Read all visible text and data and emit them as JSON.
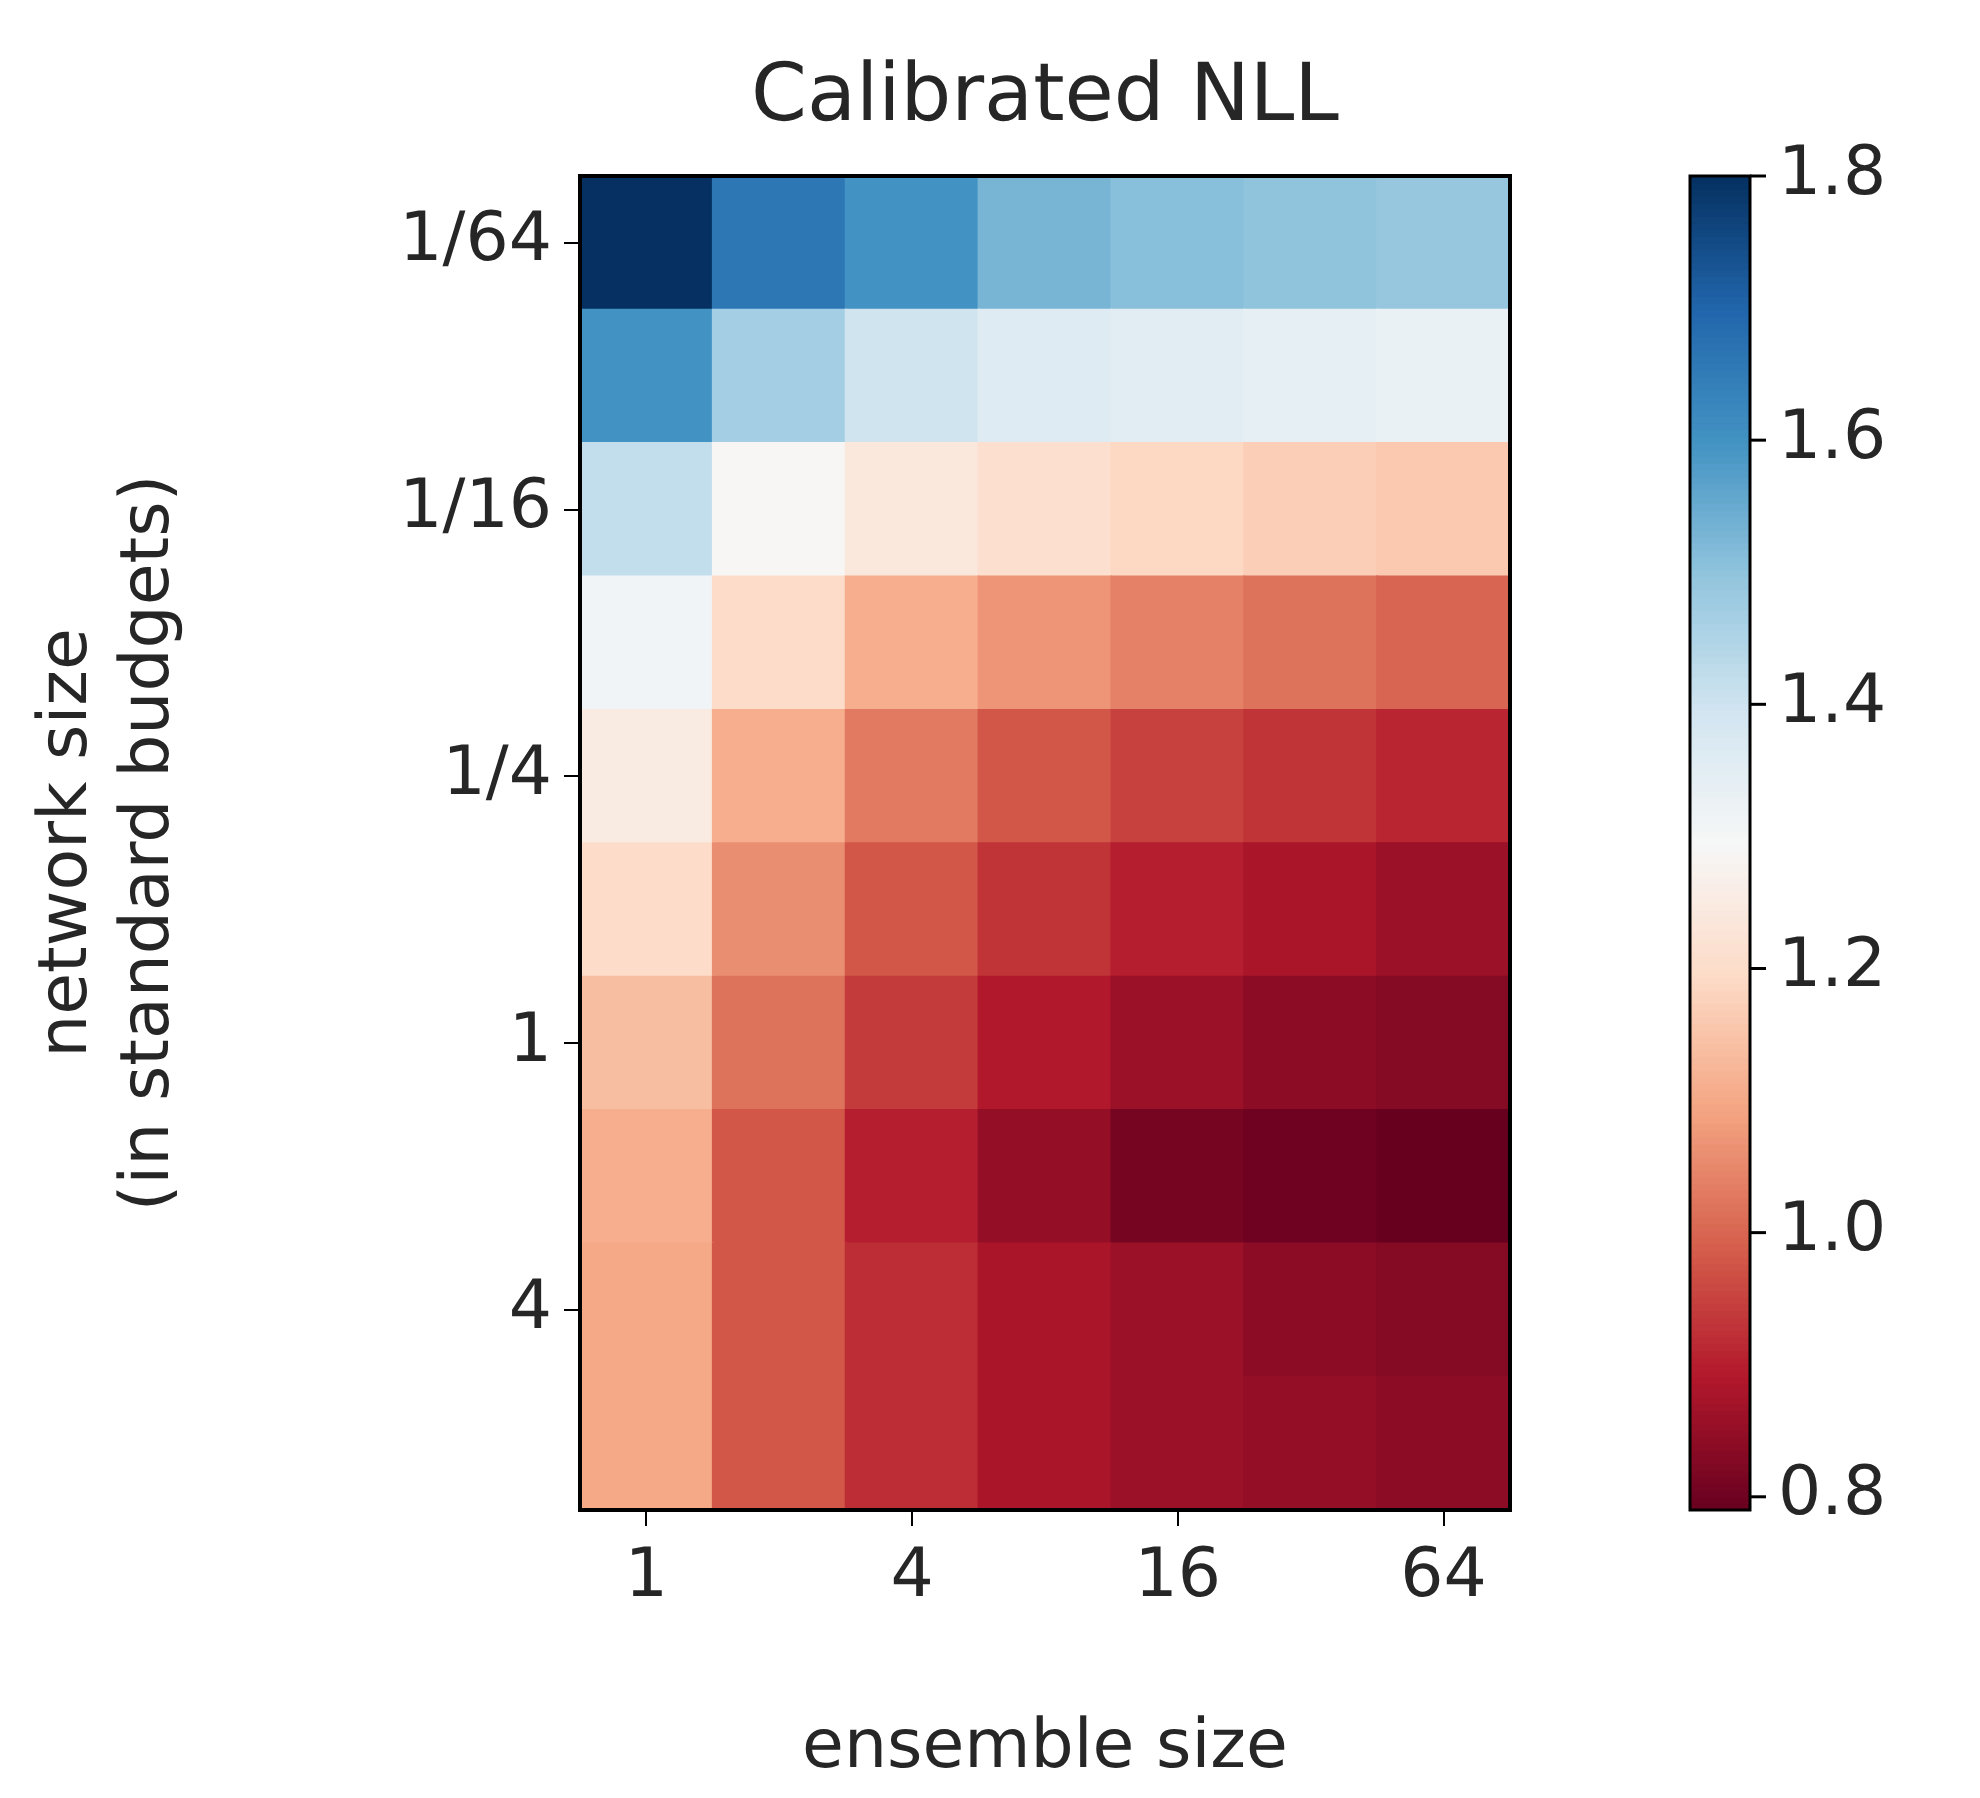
{
  "chart_data": {
    "type": "heatmap",
    "title": "Calibrated NLL",
    "xlabel": "ensemble size",
    "ylabel": "network size\n(in standard budgets)",
    "categories": [
      "1",
      null,
      "4",
      null,
      "16",
      null,
      "64"
    ],
    "y_categories": [
      "1/64",
      null,
      "1/16",
      null,
      "1/4",
      null,
      "1",
      null,
      "4",
      null
    ],
    "cells": [
      [
        1.8,
        1.66,
        1.6,
        1.53,
        1.51,
        1.5,
        1.49
      ],
      [
        1.6,
        1.47,
        1.4,
        1.36,
        1.35,
        1.34,
        1.33
      ],
      [
        1.42,
        1.29,
        1.24,
        1.21,
        1.19,
        1.17,
        1.16
      ],
      [
        1.31,
        1.2,
        1.11,
        1.07,
        1.04,
        1.02,
        1.0
      ],
      [
        1.25,
        1.11,
        1.03,
        0.98,
        0.95,
        0.93,
        0.91
      ],
      [
        1.2,
        1.06,
        0.98,
        0.93,
        0.9,
        0.88,
        0.86
      ],
      [
        1.14,
        1.02,
        0.94,
        0.89,
        0.86,
        0.84,
        0.83
      ],
      [
        1.11,
        0.98,
        0.9,
        0.85,
        0.81,
        0.8,
        0.79
      ],
      [
        1.1,
        0.98,
        0.92,
        0.88,
        0.86,
        0.84,
        0.83
      ],
      [
        1.1,
        0.98,
        0.92,
        0.88,
        0.86,
        0.85,
        0.84
      ]
    ],
    "clim": [
      0.79,
      1.8
    ],
    "cticks": [
      0.8,
      {
        "value": 1,
        "label": "1.0"
      },
      1.2,
      1.4,
      1.6,
      1.8
    ]
  }
}
